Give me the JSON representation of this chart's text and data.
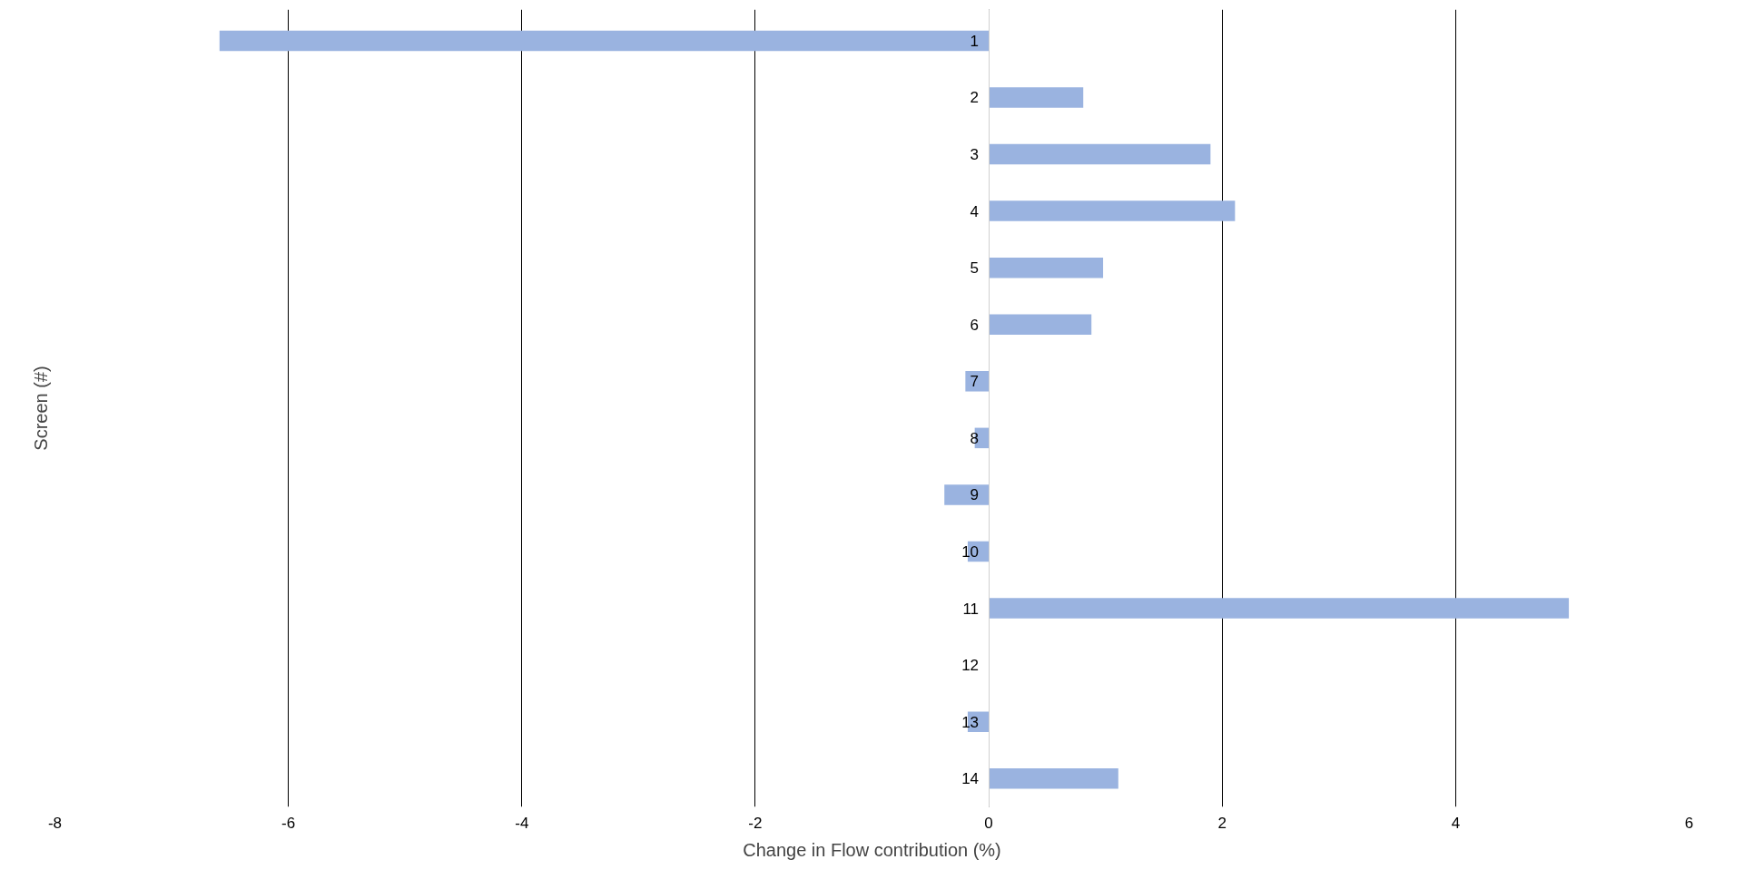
{
  "chart_data": {
    "type": "bar",
    "orientation": "horizontal",
    "xlabel": "Change in Flow contribution (%)",
    "ylabel": "Screen (#)",
    "categories": [
      "1",
      "2",
      "3",
      "4",
      "5",
      "6",
      "7",
      "8",
      "9",
      "10",
      "11",
      "12",
      "13",
      "14"
    ],
    "values": [
      -6.59,
      0.81,
      1.9,
      2.11,
      0.98,
      0.88,
      -0.2,
      -0.12,
      -0.38,
      -0.18,
      4.97,
      0,
      -0.18,
      1.11
    ],
    "color": "#9ab3e0",
    "xlim": [
      -8,
      6
    ],
    "xticks": [
      -8,
      -6,
      -4,
      -2,
      0,
      2,
      4,
      6
    ],
    "grid": "x"
  }
}
